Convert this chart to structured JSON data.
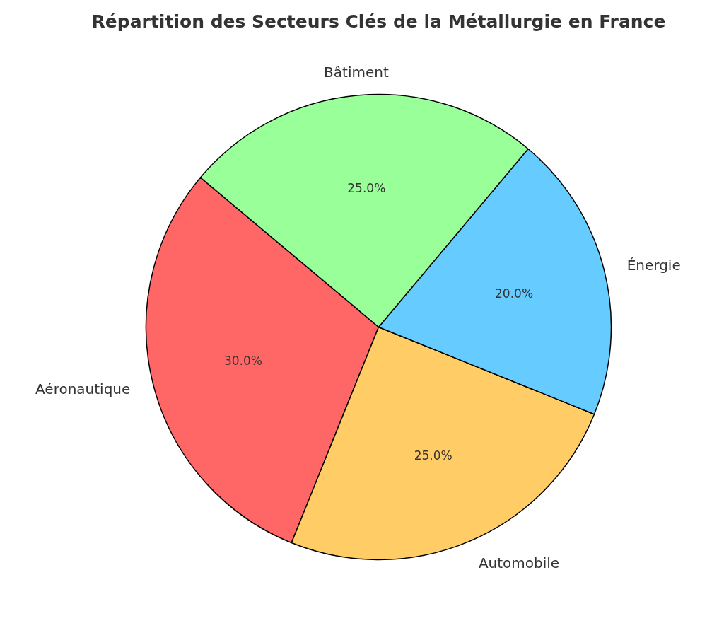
{
  "chart_data": {
    "type": "pie",
    "title": "Répartition des Secteurs Clés de la Métallurgie en France",
    "categories": [
      "Aéronautique",
      "Automobile",
      "Énergie",
      "Bâtiment"
    ],
    "values": [
      30,
      25,
      20,
      25
    ],
    "colors": [
      "#ff6666",
      "#ffcc66",
      "#66ccff",
      "#99ff99"
    ],
    "value_labels": [
      "30.0%",
      "25.0%",
      "20.0%",
      "25.0%"
    ]
  }
}
